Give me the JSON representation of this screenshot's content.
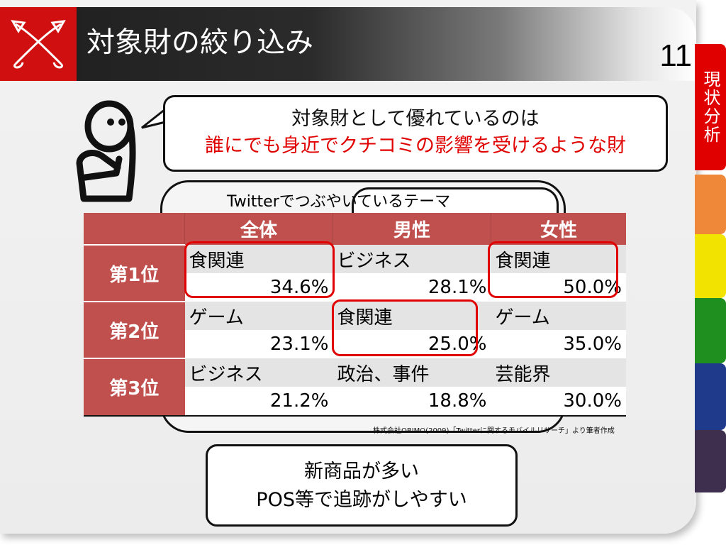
{
  "header": {
    "title": "対象財の絞り込み",
    "page_number": "11"
  },
  "side_tabs": [
    {
      "label": "現状分析",
      "color": "#e00000",
      "active": true
    },
    {
      "label": "",
      "color": "#f0883a"
    },
    {
      "label": "",
      "color": "#f2e400"
    },
    {
      "label": "",
      "color": "#1f8f1f"
    },
    {
      "label": "",
      "color": "#1f3a8a"
    },
    {
      "label": "",
      "color": "#3f2f4f"
    }
  ],
  "bubble": {
    "line1": "対象財として優れているのは",
    "line2": "誰にでも身近でクチコミの影響を受けるような財"
  },
  "table_title": "Twitterでつぶやいているテーマ",
  "table": {
    "columns": [
      "全体",
      "男性",
      "女性"
    ],
    "rows": [
      {
        "rank": "第1位",
        "cells": [
          {
            "name": "食関連",
            "pct": "34.6%"
          },
          {
            "name": "ビジネス",
            "pct": "28.1%"
          },
          {
            "name": "食関連",
            "pct": "50.0%"
          }
        ]
      },
      {
        "rank": "第2位",
        "cells": [
          {
            "name": "ゲーム",
            "pct": "23.1%"
          },
          {
            "name": "食関連",
            "pct": "25.0%"
          },
          {
            "name": "ゲーム",
            "pct": "35.0%"
          }
        ]
      },
      {
        "rank": "第3位",
        "cells": [
          {
            "name": "ビジネス",
            "pct": "21.2%"
          },
          {
            "name": "政治、事件",
            "pct": "18.8%"
          },
          {
            "name": "芸能界",
            "pct": "30.0%"
          }
        ]
      }
    ],
    "highlight_color": "#e00000"
  },
  "source": "株式会社OBIMO(2009)「Twitterに関するモバイルリサーチ」より筆者作成",
  "bottom_box": {
    "line1": "新商品が多い",
    "line2": "POS等で追跡がしやすい"
  }
}
